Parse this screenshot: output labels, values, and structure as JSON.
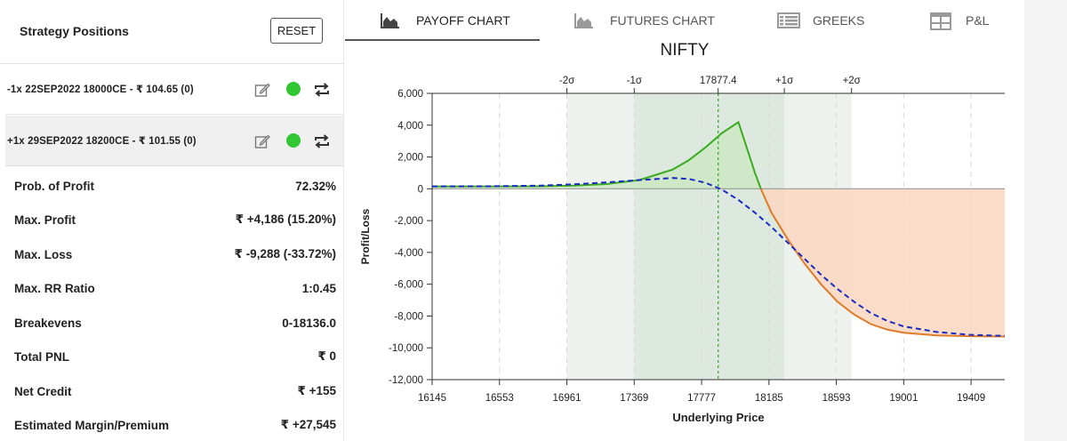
{
  "left_panel": {
    "title": "Strategy Positions",
    "reset_label": "RESET",
    "positions": [
      {
        "text": "-1x  22SEP2022  18000CE  - ₹ 104.65   (0)",
        "status_color": "#33c633"
      },
      {
        "text": "+1x  29SEP2022  18200CE  - ₹ 101.55   (0)",
        "status_color": "#33c633"
      }
    ],
    "stats": [
      {
        "label": "Prob. of Profit",
        "value": "72.32%"
      },
      {
        "label": "Max. Profit",
        "value": "₹ +4,186 (15.20%)"
      },
      {
        "label": "Max. Loss",
        "value": "₹ -9,288 (-33.72%)"
      },
      {
        "label": "Max. RR Ratio",
        "value": "1:0.45"
      },
      {
        "label": "Breakevens",
        "value": "0-18136.0"
      },
      {
        "label": "Total PNL",
        "value": "₹ 0"
      },
      {
        "label": "Net Credit",
        "value": "₹ +155"
      },
      {
        "label": "Estimated Margin/Premium",
        "value": "₹ +27,545"
      }
    ]
  },
  "tabs": [
    {
      "label": "PAYOFF CHART",
      "icon": "area-chart-icon",
      "active": true
    },
    {
      "label": "FUTURES CHART",
      "icon": "area-chart-icon",
      "active": false
    },
    {
      "label": "GREEKS",
      "icon": "table-list-icon",
      "active": false
    },
    {
      "label": "P&L",
      "icon": "grid-icon",
      "active": false
    }
  ],
  "chart_title": "NIFTY",
  "chart_data": {
    "type": "area",
    "title": "NIFTY",
    "xlabel": "Underlying Price",
    "ylabel": "Profit/Loss",
    "xlim": [
      16145,
      19613
    ],
    "ylim": [
      -12000,
      6000
    ],
    "x_ticks": [
      16145,
      16553,
      16961,
      17369,
      17777,
      18185,
      18593,
      19001,
      19409
    ],
    "y_ticks": [
      6000,
      4000,
      2000,
      0,
      -2000,
      -4000,
      -6000,
      -8000,
      -10000,
      -12000
    ],
    "x_tick_labels": [
      "16145",
      "16553",
      "16961",
      "17369",
      "17777",
      "18185",
      "18593",
      "19001",
      "19409"
    ],
    "y_tick_labels": [
      "6,000",
      "4,000",
      "2,000",
      "0",
      "-2,000",
      "-4,000",
      "-6,000",
      "-8,000",
      "-10,000",
      "-12,000"
    ],
    "spot": 17877.4,
    "spot_label": "17877.4",
    "sigma_markers": [
      {
        "label": "-2σ",
        "x": 16961
      },
      {
        "label": "-1σ",
        "x": 17369
      },
      {
        "label": "+1σ",
        "x": 18278
      },
      {
        "label": "+2σ",
        "x": 18685
      }
    ],
    "grid": true,
    "colors": {
      "expiry_profit": "#3aaa1f",
      "expiry_loss": "#e07b2a",
      "target": "#1a2bc4",
      "profit_fill": "#cde8c4",
      "loss_fill": "#f9d8c2",
      "sigma_band_outer": "#eef2ee",
      "sigma_band_inner": "#dde8de",
      "spot_line": "#2aa32a"
    },
    "series": [
      {
        "style": "expiry",
        "x": [
          16145,
          16500,
          16800,
          17000,
          17200,
          17400,
          17600,
          17700,
          17800,
          17900,
          18000,
          18050,
          18100,
          18136,
          18200,
          18300,
          18400,
          18500,
          18600,
          18700,
          18800,
          18900,
          19000,
          19200,
          19400,
          19613
        ],
        "y": [
          150,
          150,
          160,
          200,
          300,
          550,
          1200,
          1800,
          2600,
          3500,
          4186,
          2600,
          1000,
          0,
          -1500,
          -3200,
          -4700,
          -6000,
          -7100,
          -7900,
          -8500,
          -8850,
          -9050,
          -9220,
          -9270,
          -9288
        ]
      },
      {
        "style": "target",
        "x": [
          16145,
          16500,
          16800,
          17000,
          17200,
          17400,
          17600,
          17700,
          17800,
          17900,
          18000,
          18100,
          18200,
          18300,
          18400,
          18500,
          18600,
          18700,
          18800,
          18900,
          19000,
          19200,
          19400,
          19613
        ],
        "y": [
          150,
          160,
          200,
          280,
          400,
          550,
          680,
          620,
          380,
          -50,
          -700,
          -1500,
          -2400,
          -3400,
          -4400,
          -5400,
          -6300,
          -7100,
          -7800,
          -8300,
          -8650,
          -9000,
          -9180,
          -9250
        ]
      }
    ]
  }
}
